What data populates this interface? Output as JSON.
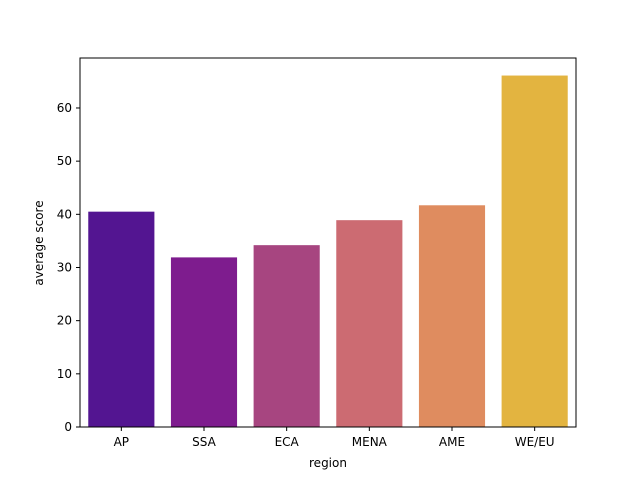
{
  "chart_data": {
    "type": "bar",
    "title": "",
    "xlabel": "region",
    "ylabel": "average score",
    "categories": [
      "AP",
      "SSA",
      "ECA",
      "MENA",
      "AME",
      "WE/EU"
    ],
    "values": [
      40.5,
      31.9,
      34.2,
      38.9,
      41.7,
      66.1
    ],
    "colors": [
      "#531591",
      "#7e1c8e",
      "#a74580",
      "#cc6b72",
      "#df8c5f",
      "#e3b440"
    ],
    "ylim": [
      0,
      69.4
    ],
    "yticks": [
      0,
      10,
      20,
      30,
      40,
      50,
      60
    ],
    "grid": false,
    "legend": "none"
  }
}
